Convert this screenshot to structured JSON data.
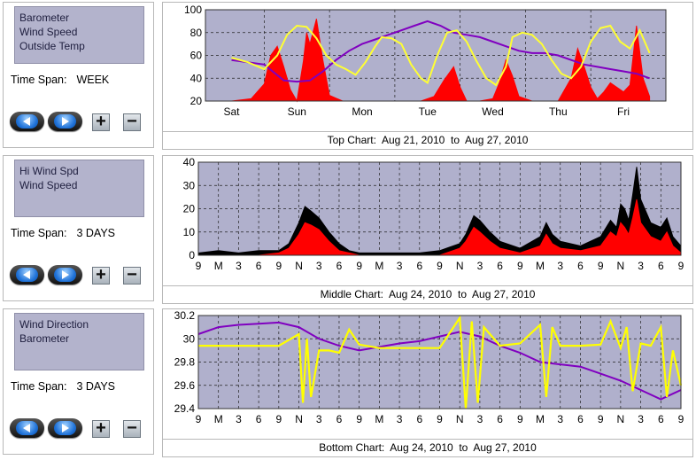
{
  "panels": [
    {
      "list_items": [
        "Barometer",
        "Wind Speed",
        "Outside Temp"
      ],
      "time_span_label": "Time Span:",
      "time_span_value": "WEEK",
      "caption": "Top Chart:  Aug 21, 2010  to  Aug 27, 2010"
    },
    {
      "list_items": [
        "Hi Wind Spd",
        "Wind Speed"
      ],
      "time_span_label": "Time Span:",
      "time_span_value": "3 DAYS",
      "caption": "Middle Chart:  Aug 24, 2010  to  Aug 27, 2010"
    },
    {
      "list_items": [
        "Wind Direction",
        "Barometer"
      ],
      "time_span_label": "Time Span:",
      "time_span_value": "3 DAYS",
      "caption": "Bottom Chart:  Aug 24, 2010  to  Aug 27, 2010"
    }
  ],
  "buttons": {
    "back_icon": "left-arrow-icon",
    "forward_icon": "right-arrow-icon",
    "zoom_in_label": "+",
    "zoom_out_label": "−"
  },
  "colors": {
    "plot_bg": "#b0b0cc",
    "wind_speed": "#ff0000",
    "hi_wind": "#000000",
    "barometer": "#8000c0",
    "outside_temp": "#ffff33",
    "wind_direction": "#ffff00"
  },
  "chart_data": [
    {
      "type": "line",
      "categories": [
        "Sat",
        "Sun",
        "Mon",
        "Tue",
        "Wed",
        "Thu",
        "Fri"
      ],
      "ylim": [
        20,
        100
      ],
      "yticks": [
        20,
        40,
        60,
        80,
        100
      ],
      "grid": true,
      "series": [
        {
          "name": "Outside Temp",
          "color": "#ffff33",
          "x": [
            0,
            0.25,
            0.5,
            0.7,
            0.85,
            1.0,
            1.15,
            1.3,
            1.45,
            1.6,
            1.75,
            1.9,
            2.05,
            2.2,
            2.3,
            2.45,
            2.6,
            2.75,
            2.9,
            3.0,
            3.15,
            3.3,
            3.45,
            3.6,
            3.75,
            3.9,
            4.05,
            4.2,
            4.3,
            4.45,
            4.6,
            4.75,
            4.9,
            5.05,
            5.2,
            5.35,
            5.5,
            5.65,
            5.8,
            5.95,
            6.1,
            6.25,
            6.4
          ],
          "y": [
            58,
            54,
            48,
            60,
            78,
            86,
            85,
            75,
            60,
            52,
            48,
            43,
            54,
            68,
            76,
            75,
            70,
            52,
            40,
            36,
            60,
            80,
            82,
            72,
            55,
            40,
            34,
            50,
            76,
            80,
            78,
            70,
            56,
            44,
            40,
            50,
            72,
            84,
            86,
            72,
            66,
            82,
            62
          ]
        },
        {
          "name": "Barometer",
          "color": "#8000c0",
          "x": [
            0,
            0.5,
            0.8,
            1.0,
            1.2,
            1.4,
            1.6,
            1.8,
            2.0,
            2.2,
            2.4,
            2.6,
            2.8,
            3.0,
            3.2,
            3.4,
            3.6,
            3.8,
            4.0,
            4.2,
            4.4,
            4.6,
            4.8,
            5.0,
            5.2,
            5.4,
            5.6,
            5.8,
            6.0,
            6.2,
            6.4
          ],
          "y": [
            56,
            52,
            38,
            37,
            38,
            46,
            56,
            64,
            70,
            74,
            78,
            82,
            86,
            90,
            86,
            80,
            78,
            76,
            72,
            68,
            64,
            62,
            62,
            60,
            56,
            52,
            50,
            48,
            46,
            44,
            40
          ]
        },
        {
          "name": "Wind Speed",
          "color": "#ff0000",
          "x": [
            0,
            0.3,
            0.5,
            0.6,
            0.7,
            0.8,
            0.9,
            1.0,
            1.1,
            1.15,
            1.2,
            1.3,
            1.4,
            1.5,
            1.7,
            1.9,
            2.1,
            2.3,
            2.5,
            2.7,
            2.9,
            3.1,
            3.25,
            3.4,
            3.5,
            3.6,
            3.8,
            4.0,
            4.1,
            4.2,
            4.3,
            4.4,
            4.6,
            4.8,
            5.0,
            5.2,
            5.3,
            5.4,
            5.5,
            5.6,
            5.7,
            5.8,
            6.0,
            6.1,
            6.2,
            6.3,
            6.4
          ],
          "y": [
            20,
            22,
            35,
            60,
            68,
            50,
            30,
            20,
            55,
            80,
            70,
            92,
            55,
            25,
            20,
            20,
            20,
            20,
            20,
            20,
            20,
            24,
            38,
            50,
            32,
            20,
            20,
            22,
            36,
            56,
            42,
            24,
            20,
            20,
            20,
            40,
            66,
            50,
            32,
            22,
            28,
            36,
            28,
            34,
            86,
            40,
            24
          ]
        }
      ]
    },
    {
      "type": "line",
      "categories": [
        "9",
        "M",
        "3",
        "6",
        "9",
        "N",
        "3",
        "6",
        "9",
        "M",
        "3",
        "6",
        "9",
        "N",
        "3",
        "6",
        "9",
        "M",
        "3",
        "6",
        "9",
        "N",
        "3",
        "6",
        "9"
      ],
      "ylim": [
        0,
        40
      ],
      "yticks": [
        0,
        10,
        20,
        30,
        40
      ],
      "grid": true,
      "series": [
        {
          "name": "Hi Wind Spd",
          "color": "#000000",
          "x": [
            0,
            1,
            2,
            3,
            4,
            4.5,
            5,
            5.3,
            5.6,
            6,
            6.5,
            7,
            7.5,
            8,
            9,
            10,
            11,
            12,
            13,
            13.3,
            13.7,
            14,
            14.5,
            15,
            16,
            17,
            17.3,
            17.6,
            18,
            19,
            20,
            20.5,
            20.8,
            21,
            21.2,
            21.4,
            21.6,
            21.8,
            22,
            22.5,
            23,
            23.3,
            23.6,
            24
          ],
          "y": [
            1,
            2,
            1,
            2,
            2,
            5,
            14,
            21,
            19,
            16,
            10,
            5,
            2,
            1,
            1,
            1,
            1,
            2,
            5,
            9,
            17,
            15,
            10,
            6,
            3,
            8,
            14,
            9,
            6,
            4,
            8,
            15,
            12,
            22,
            20,
            15,
            26,
            38,
            24,
            14,
            12,
            16,
            8,
            4
          ]
        },
        {
          "name": "Wind Speed",
          "color": "#ff0000",
          "x": [
            0,
            1,
            2,
            3,
            4,
            4.5,
            5,
            5.3,
            5.6,
            6,
            6.5,
            7,
            7.5,
            8,
            9,
            10,
            11,
            12,
            13,
            13.3,
            13.7,
            14,
            14.5,
            15,
            16,
            17,
            17.3,
            17.6,
            18,
            19,
            20,
            20.5,
            20.8,
            21,
            21.2,
            21.4,
            21.6,
            21.8,
            22,
            22.5,
            23,
            23.3,
            23.6,
            24
          ],
          "y": [
            0,
            0,
            0,
            0,
            1,
            3,
            9,
            14,
            13,
            11,
            6,
            2,
            1,
            0,
            0,
            0,
            0,
            0,
            3,
            6,
            12,
            10,
            6,
            3,
            1,
            4,
            9,
            5,
            3,
            2,
            4,
            10,
            8,
            14,
            12,
            9,
            16,
            24,
            14,
            8,
            6,
            10,
            4,
            1
          ]
        }
      ]
    },
    {
      "type": "line",
      "categories": [
        "9",
        "M",
        "3",
        "6",
        "9",
        "N",
        "3",
        "6",
        "9",
        "M",
        "3",
        "6",
        "9",
        "N",
        "3",
        "6",
        "9",
        "M",
        "3",
        "6",
        "9",
        "N",
        "3",
        "6",
        "9"
      ],
      "ylim": [
        29.4,
        30.2
      ],
      "yticks": [
        29.4,
        29.6,
        29.8,
        30,
        30.2
      ],
      "grid": true,
      "series": [
        {
          "name": "Barometer",
          "color": "#8000c0",
          "x": [
            0,
            1,
            2,
            3,
            4,
            5,
            6,
            7,
            8,
            9,
            10,
            11,
            12,
            13,
            14,
            15,
            16,
            17,
            18,
            19,
            20,
            21,
            22,
            23,
            24
          ],
          "y": [
            30.04,
            30.1,
            30.12,
            30.13,
            30.14,
            30.1,
            30.0,
            29.94,
            29.9,
            29.93,
            29.96,
            29.98,
            30.02,
            30.06,
            30.02,
            29.94,
            29.88,
            29.8,
            29.78,
            29.76,
            29.7,
            29.64,
            29.56,
            29.48,
            29.56
          ]
        },
        {
          "name": "Wind Direction",
          "color": "#ffff00",
          "x": [
            0,
            1,
            2,
            3,
            4,
            5,
            5.2,
            5.4,
            5.6,
            6,
            6.5,
            7,
            7.5,
            8,
            9,
            10,
            11,
            12,
            13,
            13.3,
            13.6,
            13.9,
            14.2,
            15,
            16,
            17,
            17.3,
            17.6,
            18,
            19,
            20,
            20.5,
            21,
            21.3,
            21.6,
            22,
            22.5,
            23,
            23.3,
            23.6,
            24
          ],
          "y": [
            29.94,
            29.94,
            29.94,
            29.94,
            29.94,
            30.04,
            29.45,
            30.0,
            29.5,
            29.9,
            29.9,
            29.88,
            30.08,
            29.95,
            29.92,
            29.92,
            29.92,
            29.92,
            30.18,
            29.4,
            30.15,
            29.45,
            30.1,
            29.94,
            29.96,
            30.12,
            29.5,
            30.1,
            29.94,
            29.94,
            29.95,
            30.15,
            29.92,
            30.1,
            29.55,
            29.96,
            29.94,
            30.1,
            29.5,
            29.9,
            29.6
          ]
        }
      ]
    }
  ]
}
